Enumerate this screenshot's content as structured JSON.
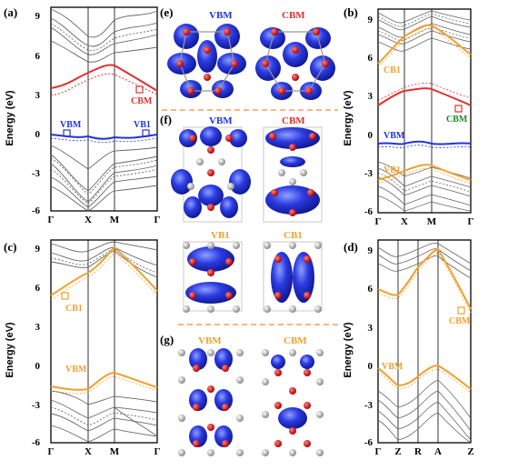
{
  "colors": {
    "blue": "#2233dd",
    "red": "#e03030",
    "orange": "#f0a030",
    "gray": "#666666",
    "divider": "#f0a060"
  },
  "panels": {
    "a": {
      "letter": "(a)",
      "ylabel": "Energy (eV)",
      "yticks": [
        "9",
        "6",
        "3",
        "0",
        "-3",
        "-6"
      ],
      "xticks": [
        "Γ",
        "X",
        "M",
        "Γ"
      ],
      "labels": {
        "vbm": "VBM",
        "cbm": "CBM",
        "vb1": "VB1"
      }
    },
    "b": {
      "letter": "(b)",
      "ylabel": "Energy (eV)",
      "yticks": [
        "9",
        "6",
        "3",
        "0",
        "-3",
        "-6"
      ],
      "xticks": [
        "Γ",
        "X",
        "M",
        "Γ"
      ],
      "labels": {
        "cb1": "CB1",
        "cbm": "CBM",
        "vbm": "VBM",
        "vb1": "VB1"
      }
    },
    "c": {
      "letter": "(c)",
      "ylabel": "Energy (eV)",
      "yticks": [
        "9",
        "6",
        "3",
        "0",
        "-3",
        "-6"
      ],
      "xticks": [
        "Γ",
        "X",
        "M",
        "Γ"
      ],
      "labels": {
        "cb1": "CB1",
        "vbm": "VBM"
      }
    },
    "d": {
      "letter": "(d)",
      "ylabel": "Energy (eV)",
      "yticks": [
        "9",
        "6",
        "3",
        "0",
        "-3",
        "-6"
      ],
      "xticks": [
        "Γ",
        "Z",
        "R",
        "A",
        "Z"
      ],
      "labels": {
        "cbm": "CBM",
        "vbm": "VBM"
      }
    }
  },
  "orbitals": {
    "e": {
      "letter": "(e)",
      "left": "VBM",
      "right": "CBM"
    },
    "f": {
      "letter": "(f)",
      "left": "VBM",
      "right": "CBM",
      "left2": "VB1",
      "right2": "CB1"
    },
    "g": {
      "letter": "(g)",
      "left": "VBM",
      "right": "CBM"
    }
  }
}
